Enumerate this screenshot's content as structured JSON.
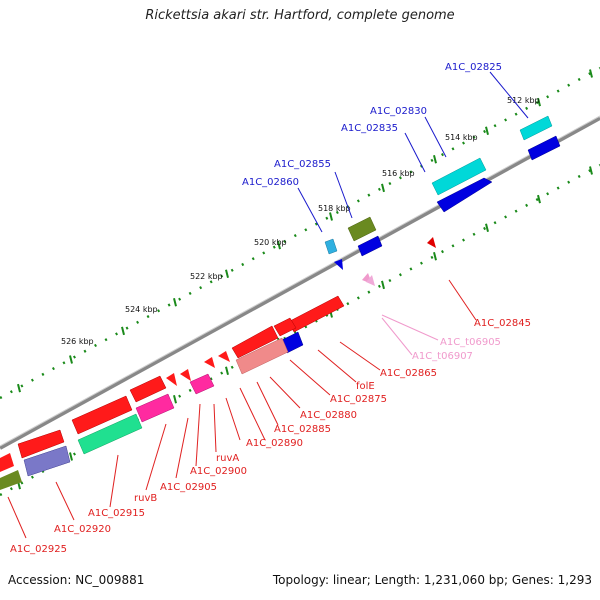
{
  "title": "Rickettsia akari str. Hartford, complete genome",
  "accession": "Accession: NC_009881",
  "topology": "Topology: linear; Length: 1,231,060 bp; Genes: 1,293",
  "ticks": [
    "512 kbp",
    "514 kbp",
    "516 kbp",
    "518 kbp",
    "520 kbp",
    "522 kbp",
    "524 kbp",
    "526 kbp"
  ],
  "colors": {
    "forward_label": "#1a1acc",
    "reverse_label": "#e02020",
    "rna_label": "#f09acc",
    "backbone": "#888888",
    "tick": "#1a8a1a"
  },
  "genes_forward": [
    {
      "label": "A1C_02825",
      "color": "#00d8d8"
    },
    {
      "label": "A1C_02830",
      "color": "#0000e0"
    },
    {
      "label": "A1C_02835",
      "color": "#00d8d8"
    },
    {
      "label": "A1C_02855",
      "color": "#6a8a20"
    },
    {
      "label": "A1C_02860",
      "color": "#30b0e0"
    }
  ],
  "genes_reverse": [
    {
      "label": "A1C_02845"
    },
    {
      "label": "A1C_t06905"
    },
    {
      "label": "A1C_t06907"
    },
    {
      "label": "A1C_02865"
    },
    {
      "label": "folE"
    },
    {
      "label": "A1C_02875"
    },
    {
      "label": "A1C_02880"
    },
    {
      "label": "A1C_02885"
    },
    {
      "label": "A1C_02890"
    },
    {
      "label": "ruvA"
    },
    {
      "label": "A1C_02900"
    },
    {
      "label": "A1C_02905"
    },
    {
      "label": "ruvB"
    },
    {
      "label": "A1C_02915"
    },
    {
      "label": "A1C_02920"
    },
    {
      "label": "A1C_02925"
    }
  ]
}
